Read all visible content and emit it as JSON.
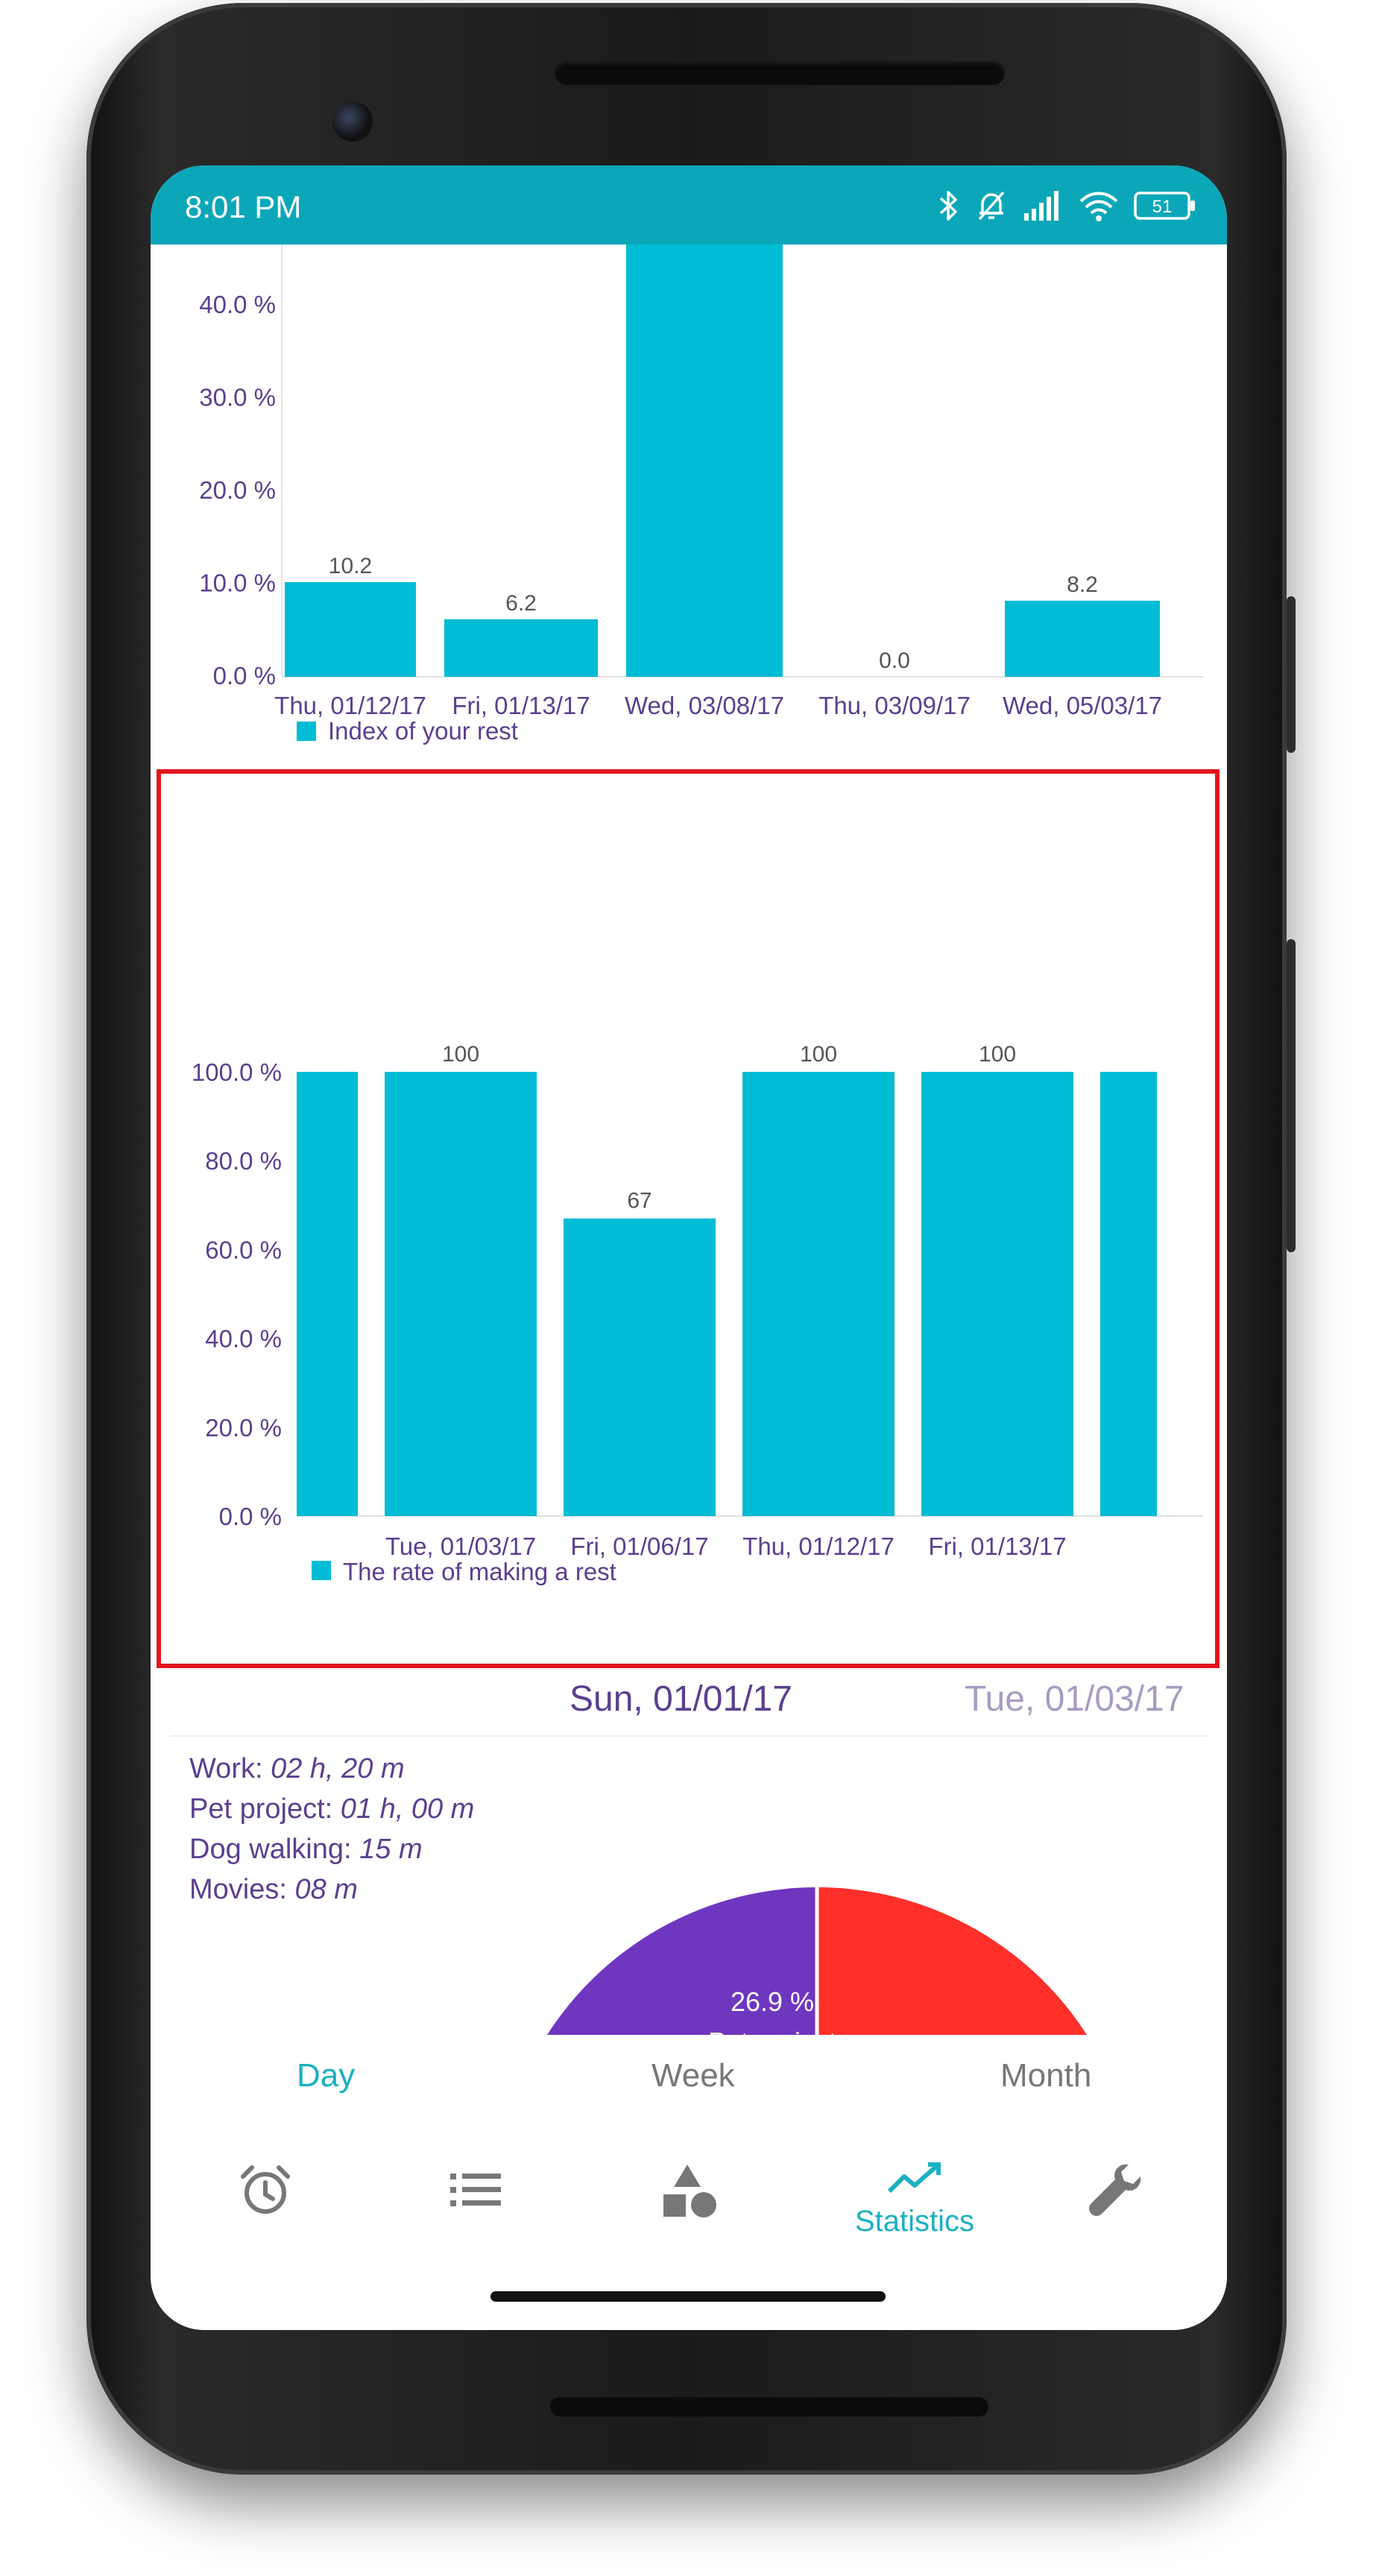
{
  "status_bar": {
    "time": "8:01 PM",
    "battery": "51",
    "icons": [
      "bluetooth-icon",
      "alarm-off-icon",
      "signal-icon",
      "wifi-icon",
      "battery-icon"
    ]
  },
  "colors": {
    "status_bar": "#0ba7b8",
    "bar": "#00bcd4",
    "axis_text": "#5b3f8f",
    "accent": "#1ab0c2",
    "pie_purple": "#6f36c0",
    "pie_red": "#ff2f2a",
    "highlight": "#e3141f"
  },
  "chart_data": [
    {
      "type": "bar",
      "y_ticks": [
        "40.0 %",
        "30.0 %",
        "20.0 %",
        "10.0 %",
        "0.0 %"
      ],
      "ylim": [
        0,
        45
      ],
      "categories": [
        "Thu, 01/12/17",
        "Fri, 01/13/17",
        "Wed, 03/08/17",
        "Thu, 03/09/17",
        "Wed, 05/03/17"
      ],
      "series": [
        {
          "name": "Index of your rest",
          "values": [
            10.2,
            6.2,
            50,
            0.0,
            8.2
          ],
          "labels": [
            "10.2",
            "6.2",
            "",
            "0.0",
            "8.2"
          ]
        }
      ],
      "legend_position": "bottom-left"
    },
    {
      "type": "bar",
      "y_ticks": [
        "100.0 %",
        "80.0 %",
        "60.0 %",
        "40.0 %",
        "20.0 %",
        "0.0 %"
      ],
      "ylim": [
        0,
        100
      ],
      "categories": [
        "",
        "Tue, 01/03/17",
        "Fri, 01/06/17",
        "Thu, 01/12/17",
        "Fri, 01/13/17",
        ""
      ],
      "series": [
        {
          "name": "The rate of making a rest",
          "values": [
            100,
            100,
            67,
            100,
            100,
            100
          ],
          "labels": [
            "",
            "100",
            "67",
            "100",
            "100",
            ""
          ]
        }
      ],
      "legend_position": "bottom-left"
    }
  ],
  "pie": {
    "date_current": "Sun, 01/01/17",
    "date_next": "Tue, 01/03/17",
    "activities": [
      {
        "name": "Work:",
        "duration": "02 h, 20 m"
      },
      {
        "name": "Pet project:",
        "duration": "01 h, 00 m"
      },
      {
        "name": "Dog walking:",
        "duration": "15 m"
      },
      {
        "name": "Movies:",
        "duration": "08 m"
      }
    ],
    "slice_percent": "26.9 %",
    "slice_name": "Pet project"
  },
  "period_tabs": [
    "Day",
    "Week",
    "Month"
  ],
  "bottom_nav": {
    "items": [
      "alarm-icon",
      "list-icon",
      "shapes-icon",
      "statistics-icon",
      "wrench-icon"
    ],
    "active_label": "Statistics"
  }
}
